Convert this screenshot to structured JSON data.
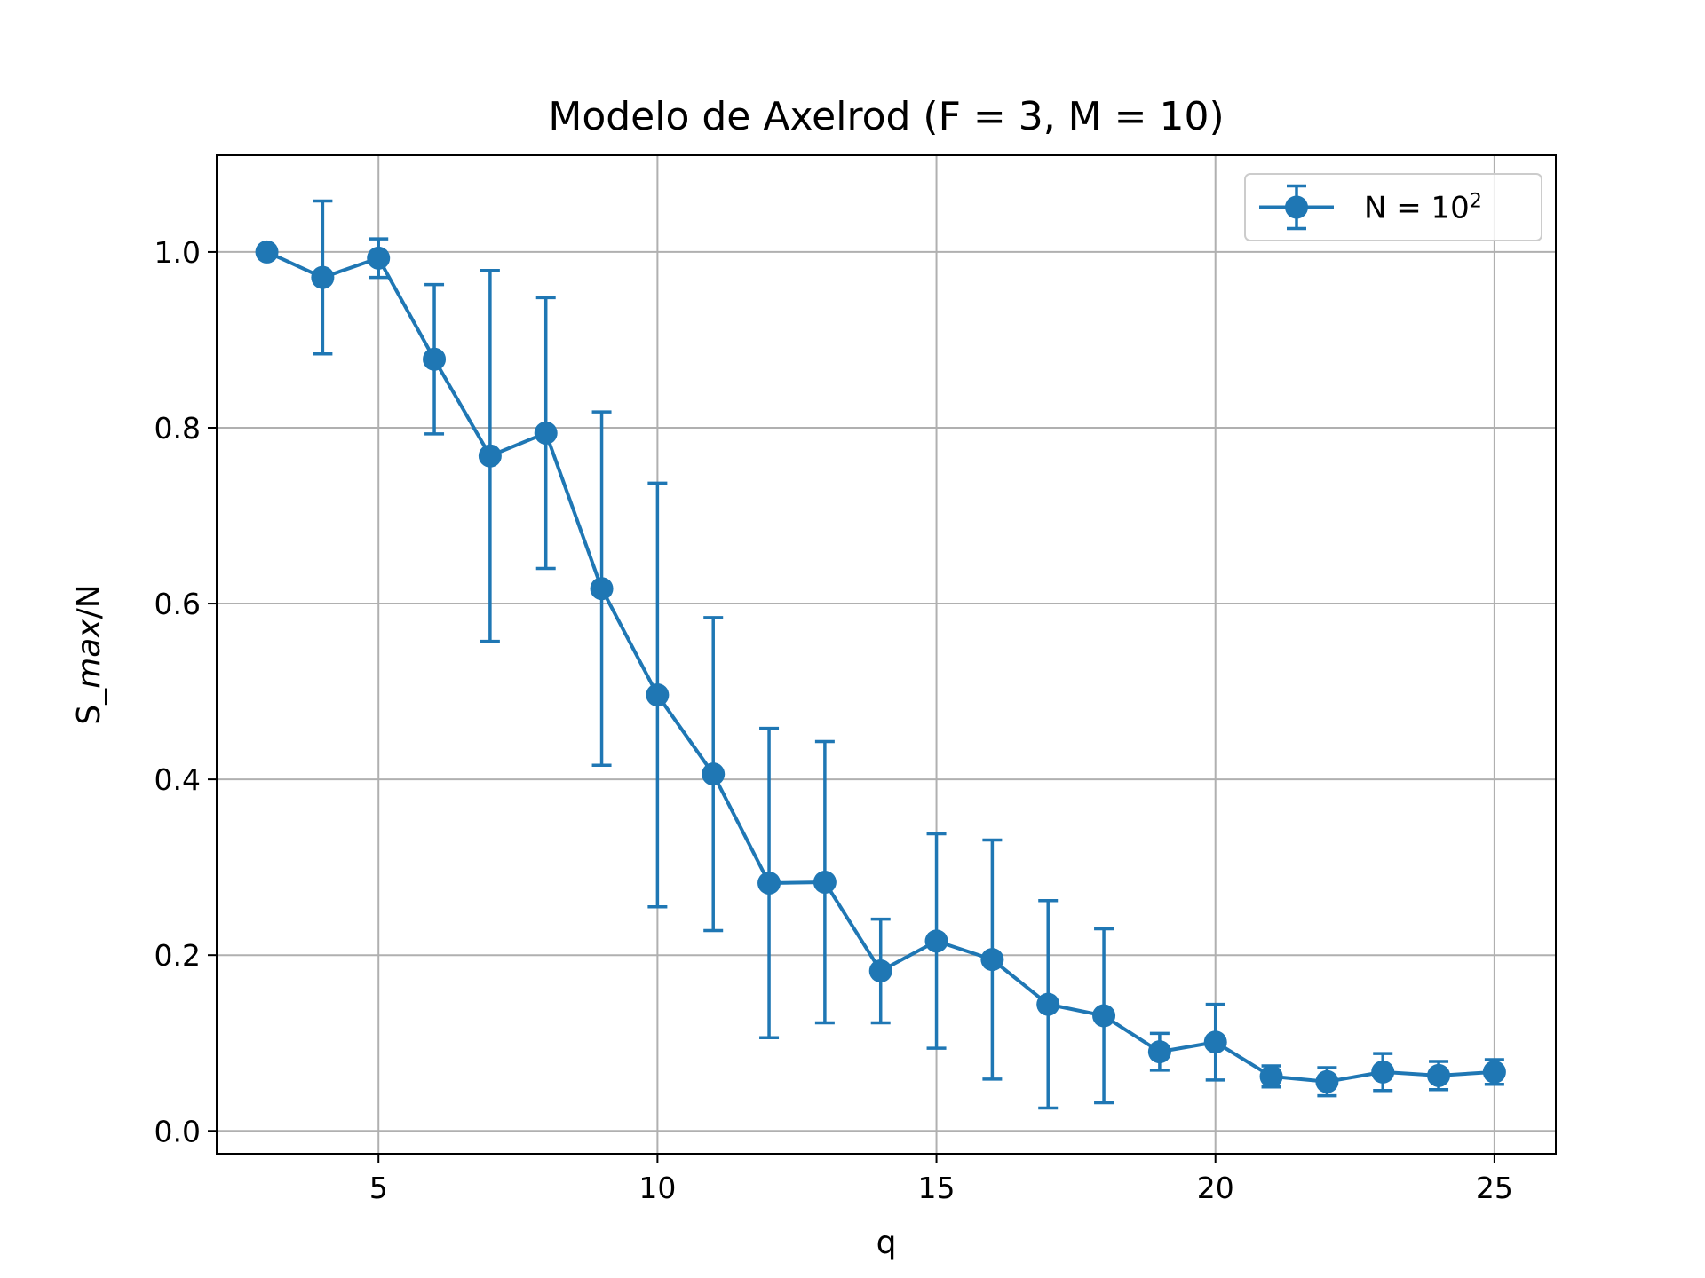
{
  "chart_data": {
    "type": "line",
    "title": "Modelo de Axelrod (F = 3, M = 10)",
    "xlabel": "q",
    "ylabel_prefix": "S_",
    "ylabel_italic": "max",
    "ylabel_suffix": "/N",
    "xlim": [
      2.1,
      26.1
    ],
    "ylim": [
      -0.026,
      1.11
    ],
    "xticks": [
      5,
      10,
      15,
      20,
      25
    ],
    "yticks": [
      0.0,
      0.2,
      0.4,
      0.6,
      0.8,
      1.0
    ],
    "ytick_labels": [
      "0.0",
      "0.2",
      "0.4",
      "0.6",
      "0.8",
      "1.0"
    ],
    "grid": true,
    "legend_position": "top-right",
    "series": [
      {
        "name_base": "N = 10",
        "name_sup": "2",
        "color": "#1f77b4",
        "error_bars": true,
        "x": [
          3,
          4,
          5,
          6,
          7,
          8,
          9,
          10,
          11,
          12,
          13,
          14,
          15,
          16,
          17,
          18,
          19,
          20,
          21,
          22,
          23,
          24,
          25
        ],
        "y": [
          1.0,
          0.971,
          0.993,
          0.878,
          0.768,
          0.794,
          0.617,
          0.496,
          0.406,
          0.282,
          0.283,
          0.182,
          0.216,
          0.195,
          0.144,
          0.131,
          0.09,
          0.101,
          0.062,
          0.056,
          0.067,
          0.063,
          0.067
        ],
        "yerr": [
          0.0,
          0.087,
          0.022,
          0.085,
          0.211,
          0.154,
          0.201,
          0.241,
          0.178,
          0.176,
          0.16,
          0.059,
          0.122,
          0.136,
          0.118,
          0.099,
          0.021,
          0.043,
          0.012,
          0.016,
          0.021,
          0.016,
          0.014
        ]
      }
    ]
  }
}
